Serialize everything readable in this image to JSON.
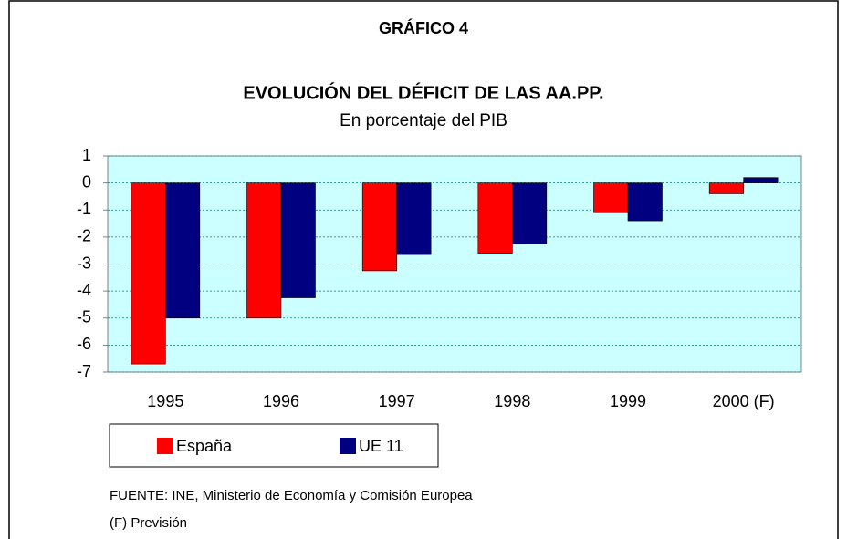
{
  "chart_data": {
    "type": "bar",
    "label": "GRÁFICO 4",
    "title": "EVOLUCIÓN DEL DÉFICIT DE LAS AA.PP.",
    "subtitle": "En porcentaje del PIB",
    "categories": [
      "1995",
      "1996",
      "1997",
      "1998",
      "1999",
      "2000 (F)"
    ],
    "series": [
      {
        "name": "España",
        "color": "#ff0000",
        "values": [
          -6.7,
          -5.0,
          -3.25,
          -2.6,
          -1.1,
          -0.4
        ]
      },
      {
        "name": "UE 11",
        "color": "#000080",
        "values": [
          -5.0,
          -4.25,
          -2.65,
          -2.25,
          -1.4,
          0.2
        ]
      }
    ],
    "ylim": [
      -7,
      1
    ],
    "yticks": [
      1,
      0,
      -1,
      -2,
      -3,
      -4,
      -5,
      -6,
      -7
    ],
    "grid": true,
    "legend": "bottom",
    "notes": [
      "FUENTE: INE, Ministerio de Economía y Comisión Europea",
      "(F) Previsión"
    ]
  }
}
